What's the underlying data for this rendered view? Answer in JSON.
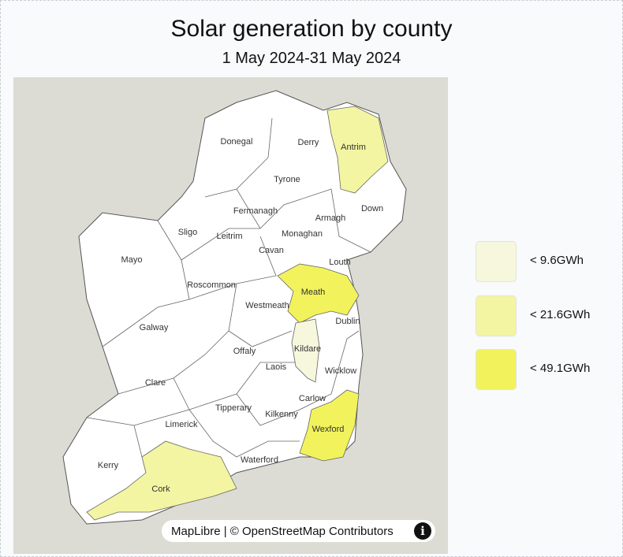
{
  "title": "Solar generation by county",
  "subtitle": "1 May 2024-31 May 2024",
  "legend": [
    {
      "label": "< 9.6GWh",
      "color": "#f6f7dc"
    },
    {
      "label": "< 21.6GWh",
      "color": "#f3f5a2"
    },
    {
      "label": "< 49.1GWh",
      "color": "#f2f35c"
    }
  ],
  "counties": [
    {
      "name": "Donegal",
      "color": "#ffffff"
    },
    {
      "name": "Derry",
      "color": "#ffffff"
    },
    {
      "name": "Antrim",
      "color": "#f3f5a2"
    },
    {
      "name": "Tyrone",
      "color": "#ffffff"
    },
    {
      "name": "Down",
      "color": "#ffffff"
    },
    {
      "name": "Fermanagh",
      "color": "#ffffff"
    },
    {
      "name": "Armagh",
      "color": "#ffffff"
    },
    {
      "name": "Sligo",
      "color": "#ffffff"
    },
    {
      "name": "Monaghan",
      "color": "#ffffff"
    },
    {
      "name": "Leitrim",
      "color": "#ffffff"
    },
    {
      "name": "Mayo",
      "color": "#ffffff"
    },
    {
      "name": "Cavan",
      "color": "#ffffff"
    },
    {
      "name": "Louth",
      "color": "#ffffff"
    },
    {
      "name": "Roscommon",
      "color": "#ffffff"
    },
    {
      "name": "Meath",
      "color": "#f2f35c"
    },
    {
      "name": "Westmeath",
      "color": "#ffffff"
    },
    {
      "name": "Dublin",
      "color": "#ffffff"
    },
    {
      "name": "Galway",
      "color": "#ffffff"
    },
    {
      "name": "Kildare",
      "color": "#f6f7dc"
    },
    {
      "name": "Offaly",
      "color": "#ffffff"
    },
    {
      "name": "Laois",
      "color": "#ffffff"
    },
    {
      "name": "Wicklow",
      "color": "#ffffff"
    },
    {
      "name": "Clare",
      "color": "#ffffff"
    },
    {
      "name": "Carlow",
      "color": "#ffffff"
    },
    {
      "name": "Tipperary",
      "color": "#ffffff"
    },
    {
      "name": "Kilkenny",
      "color": "#ffffff"
    },
    {
      "name": "Limerick",
      "color": "#ffffff"
    },
    {
      "name": "Wexford",
      "color": "#f2f35c"
    },
    {
      "name": "Waterford",
      "color": "#ffffff"
    },
    {
      "name": "Kerry",
      "color": "#ffffff"
    },
    {
      "name": "Cork",
      "color": "#f3f5a2"
    }
  ],
  "attribution": "MapLibre | © OpenStreetMap Contributors"
}
